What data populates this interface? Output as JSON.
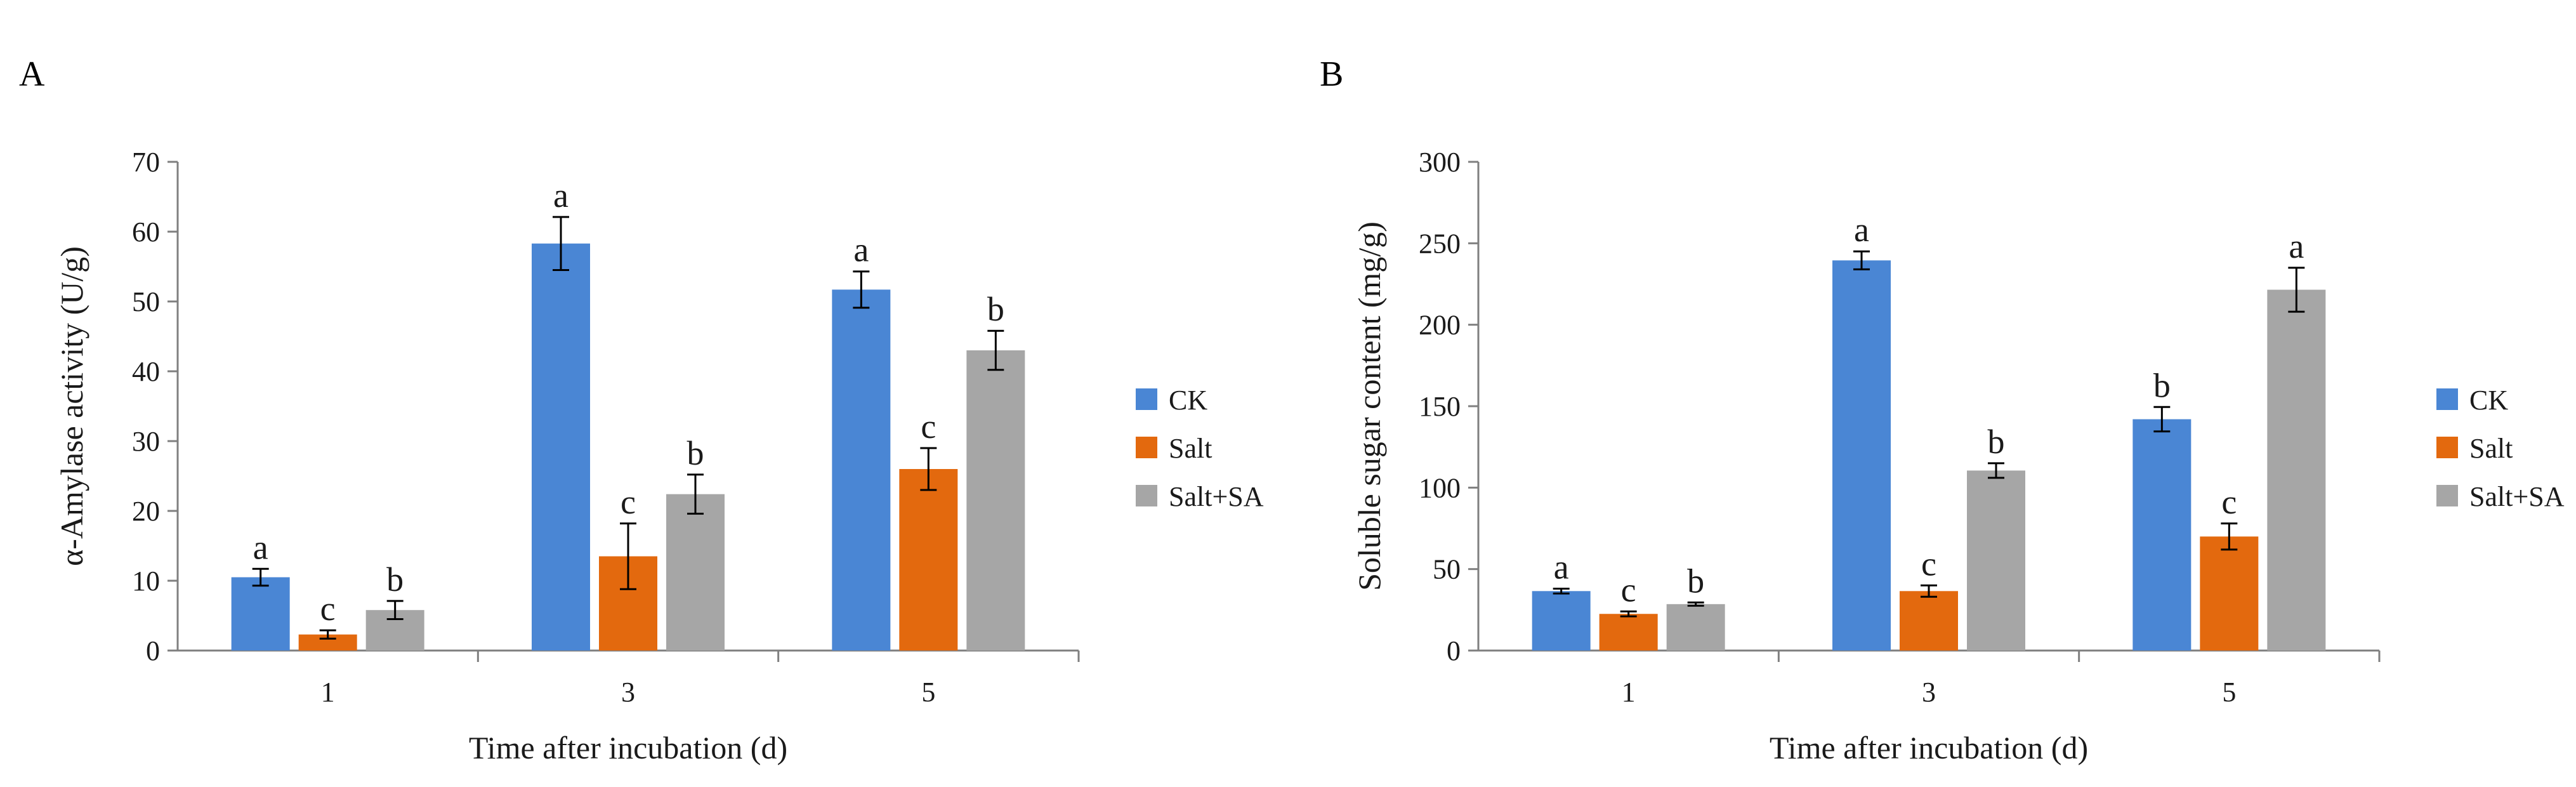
{
  "colors": {
    "CK": "#4a86d4",
    "Salt": "#e3690e",
    "Salt+SA": "#a6a6a6",
    "axis": "#7f7f7f",
    "text": "#1a1a1a"
  },
  "chart_data": [
    {
      "panel": "A",
      "type": "bar",
      "categories": [
        "1",
        "3",
        "5"
      ],
      "xlabel": "Time after incubation (d)",
      "ylabel": "α-Amylase activity (U/g)",
      "ylim": [
        0,
        70
      ],
      "yticks": [
        0,
        10,
        20,
        30,
        40,
        50,
        60,
        70
      ],
      "legend": "right",
      "series": [
        {
          "name": "CK",
          "values": [
            10.5,
            58.3,
            51.7
          ],
          "errors": [
            1.2,
            3.8,
            2.6
          ],
          "letters": [
            "a",
            "a",
            "a"
          ]
        },
        {
          "name": "Salt",
          "values": [
            2.3,
            13.5,
            26.0
          ],
          "errors": [
            0.6,
            4.7,
            3.0
          ],
          "letters": [
            "c",
            "c",
            "c"
          ]
        },
        {
          "name": "Salt+SA",
          "values": [
            5.8,
            22.4,
            43.0
          ],
          "errors": [
            1.3,
            2.8,
            2.8
          ],
          "letters": [
            "b",
            "b",
            "b"
          ]
        }
      ]
    },
    {
      "panel": "B",
      "type": "bar",
      "categories": [
        "1",
        "3",
        "5"
      ],
      "xlabel": "Time after incubation (d)",
      "ylabel": "Soluble sugar content (mg/g)",
      "ylim": [
        0,
        300
      ],
      "yticks": [
        0,
        50,
        100,
        150,
        200,
        250,
        300
      ],
      "legend": "right",
      "series": [
        {
          "name": "CK",
          "values": [
            36.5,
            239.5,
            142.0
          ],
          "errors": [
            1.5,
            5.5,
            7.5
          ],
          "letters": [
            "a",
            "a",
            "b"
          ]
        },
        {
          "name": "Salt",
          "values": [
            22.5,
            36.5,
            70.0
          ],
          "errors": [
            1.5,
            3.5,
            8.0
          ],
          "letters": [
            "c",
            "c",
            "c"
          ]
        },
        {
          "name": "Salt+SA",
          "values": [
            28.5,
            110.5,
            221.5
          ],
          "errors": [
            1.0,
            4.5,
            13.5
          ],
          "letters": [
            "b",
            "b",
            "a"
          ]
        }
      ]
    }
  ]
}
